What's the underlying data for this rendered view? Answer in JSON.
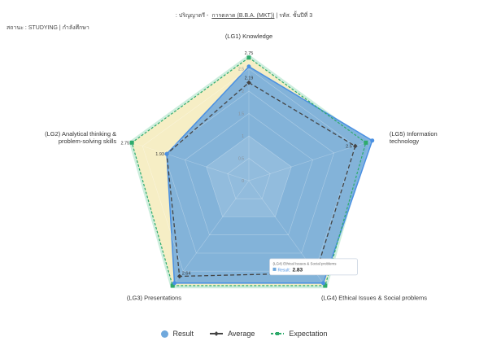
{
  "header": {
    "prefix": ": ปริญญาตรี -",
    "program": "การตลาด (B.B.A. (MKT))",
    "suffix": "| รหัส. ชั้นปีที่ 3"
  },
  "status": {
    "text": "สถานะ : STUDYING | กำลังศึกษา"
  },
  "chart_data": {
    "type": "radar",
    "categories": [
      "(LG1) Knowledge",
      "(LG5) Information technology",
      "(LG4) Ethical Issues & Social problems",
      "(LG3) Presentations",
      "(LG2) Analytical thinking & problem-solving skills"
    ],
    "category_lines": [
      [
        "(LG1) Knowledge"
      ],
      [
        "(LG5) Information",
        "technology"
      ],
      [
        "(LG4) Ethical Issues & Social problems"
      ],
      [
        "(LG3) Presentations"
      ],
      [
        "(LG2) Analytical thinking &",
        "problem-solving skills"
      ]
    ],
    "r_ticks": [
      "0",
      "0.5",
      "1",
      "1.5",
      "2",
      "2.5"
    ],
    "r_range": [
      0,
      3
    ],
    "series": [
      {
        "name": "Result",
        "values": [
          2.55,
          2.9,
          2.83,
          2.83,
          1.93
        ],
        "color": "#6fa8dc"
      },
      {
        "name": "Average",
        "values": [
          2.19,
          2.5,
          2.55,
          2.64,
          1.93
        ],
        "color": "#444444"
      },
      {
        "name": "Expectation",
        "values": [
          2.75,
          2.75,
          2.9,
          2.9,
          2.75
        ],
        "color": "#2eaa6b"
      }
    ],
    "point_labels": [
      {
        "axis": 0,
        "value": 2.75,
        "text": "2.75"
      },
      {
        "axis": 0,
        "value": 2.19,
        "text": "2.19"
      },
      {
        "axis": 1,
        "value": 2.5,
        "text": "2.5"
      },
      {
        "axis": 4,
        "value": 2.75,
        "text": "2.75"
      },
      {
        "axis": 4,
        "value": 1.93,
        "text": "1.93"
      },
      {
        "axis": 3,
        "value": 2.64,
        "text": "2.64"
      }
    ],
    "tooltip": {
      "title": "(LG4) Ethical Issues & Social problems",
      "label": "Result:",
      "value": "2.83"
    },
    "legend": {
      "position": "bottom",
      "items": [
        "Result",
        "Average",
        "Expectation"
      ]
    }
  }
}
